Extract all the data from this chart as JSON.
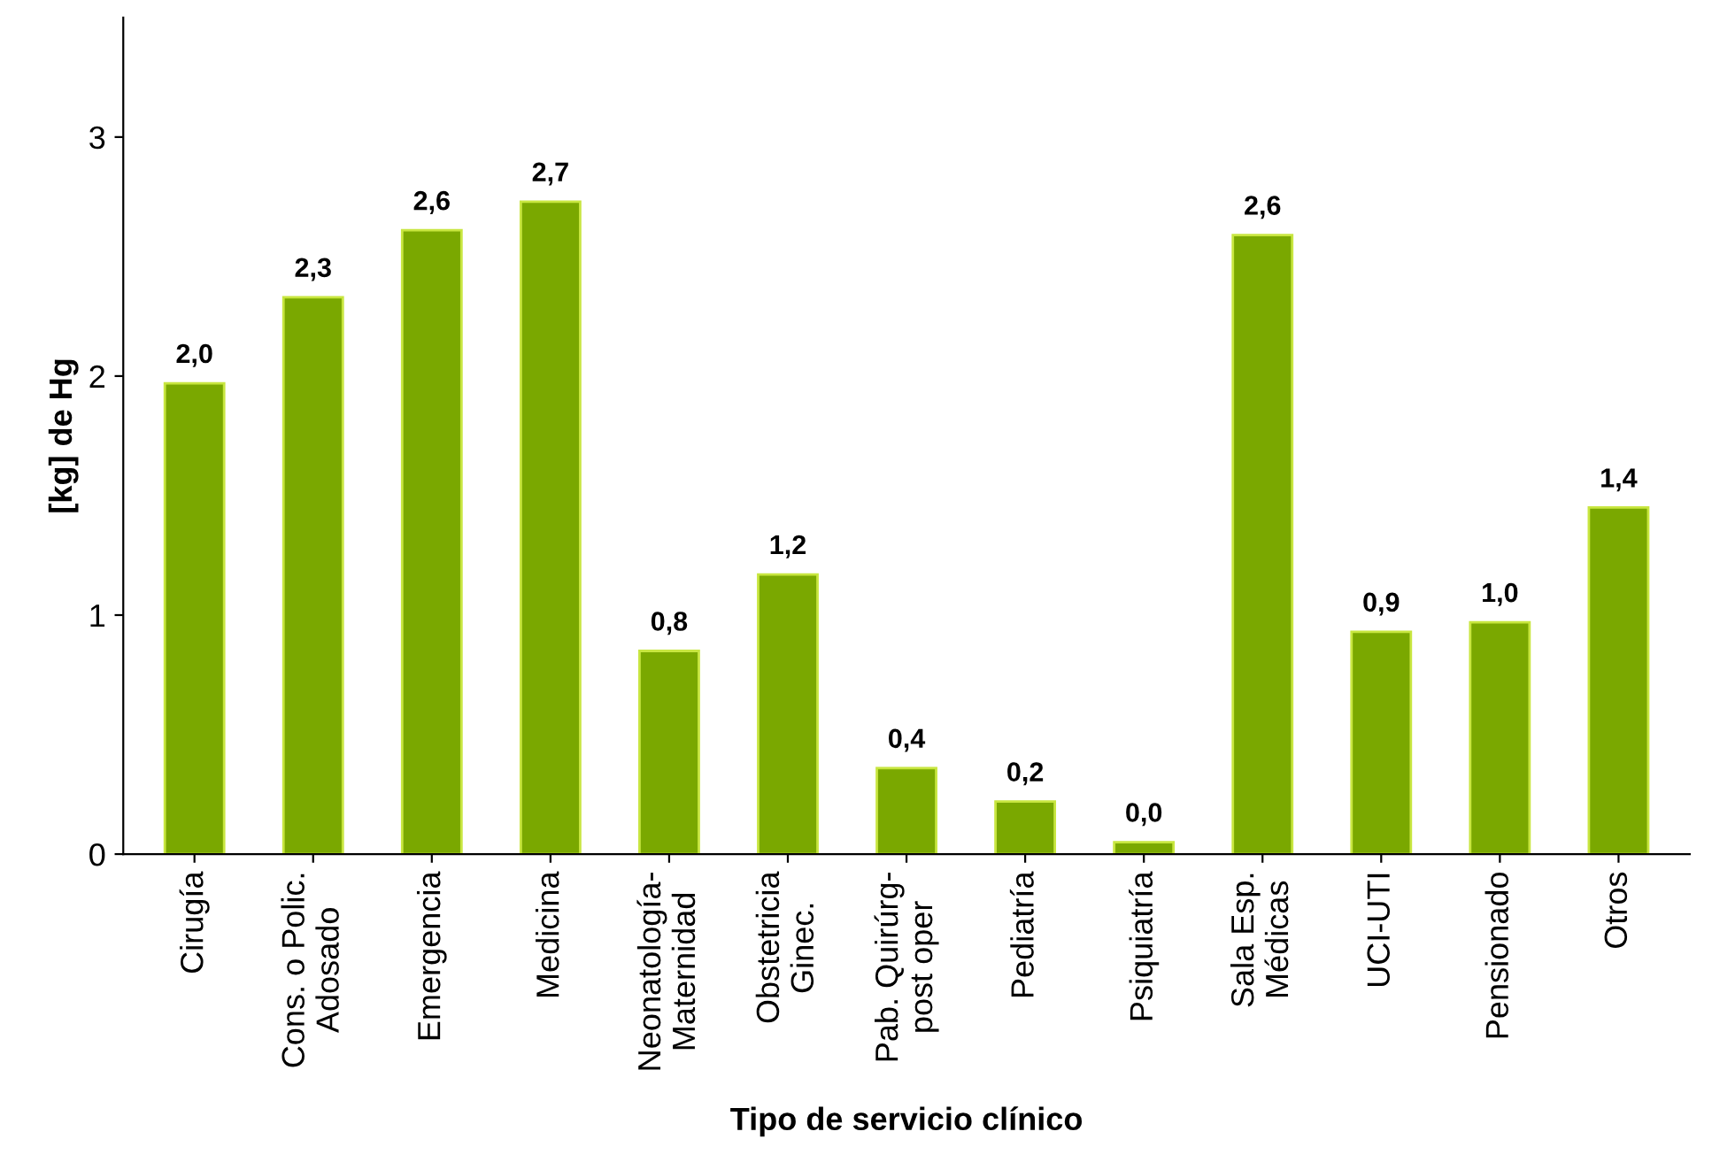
{
  "chart_data": {
    "type": "bar",
    "xlabel": "Tipo de servicio clínico",
    "ylabel": "[kg] de Hg",
    "categories": [
      "Cirugía",
      "Cons. o Polic.\nAdosado",
      "Emergencia",
      "Medicina",
      "Neonatología-\nMaternidad",
      "Obstetricia\nGinec.",
      "Pab. Quirúrg-\npost oper",
      "Pediatría",
      "Psiquiatría",
      "Sala Esp.\nMédicas",
      "UCI-UTI",
      "Pensionado",
      "Otros"
    ],
    "values": [
      1.97,
      2.33,
      2.61,
      2.73,
      0.85,
      1.17,
      0.36,
      0.22,
      0.05,
      2.59,
      0.93,
      0.97,
      1.45
    ],
    "value_labels": [
      "2,0",
      "2,3",
      "2,6",
      "2,7",
      "0,8",
      "1,2",
      "0,4",
      "0,2",
      "0,0",
      "2,6",
      "0,9",
      "1,0",
      "1,4"
    ],
    "color": "#7aa800",
    "ylim": [
      0,
      3.5
    ],
    "yticks": [
      0,
      1,
      2,
      3
    ],
    "grid": false
  }
}
